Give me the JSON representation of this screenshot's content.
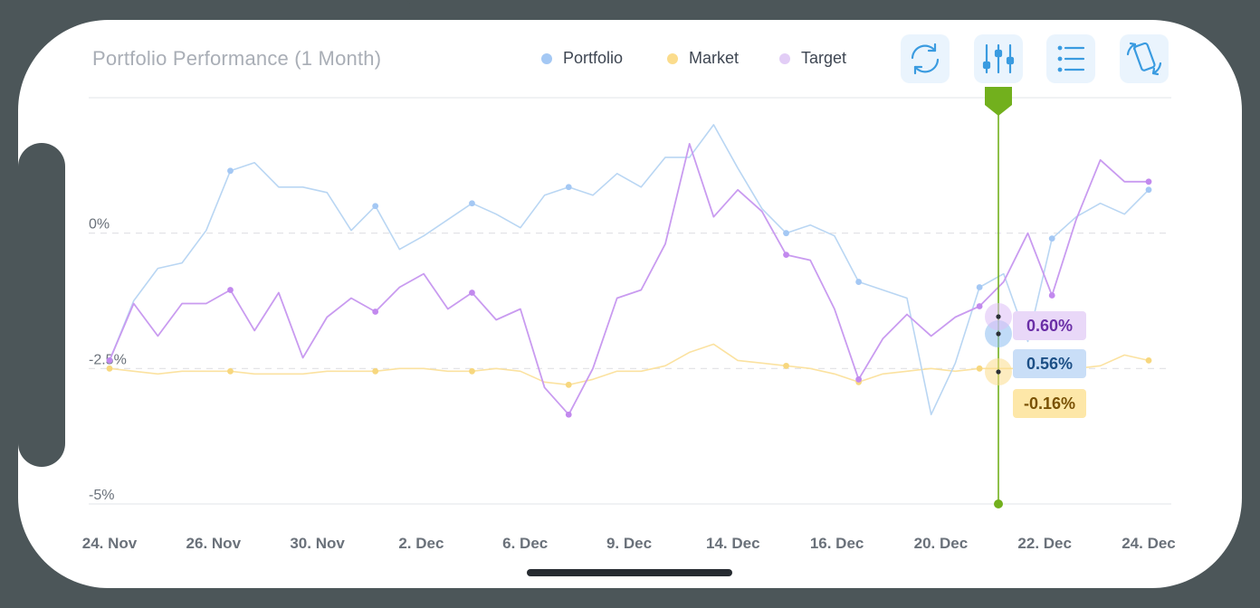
{
  "header": {
    "title": "Portfolio Performance (1 Month)"
  },
  "legend": [
    {
      "label": "Portfolio",
      "color": "#a4c8f4"
    },
    {
      "label": "Market",
      "color": "#fbdc8c"
    },
    {
      "label": "Target",
      "color": "#e2cdf6"
    }
  ],
  "toolbar": [
    {
      "icon": "refresh-icon"
    },
    {
      "icon": "sliders-icon"
    },
    {
      "icon": "list-icon"
    },
    {
      "icon": "rotate-device-icon"
    }
  ],
  "colors": {
    "portfolio_line": "#b9d6f3",
    "portfolio_dot": "#a4c8f4",
    "market_line": "#fbe2a0",
    "market_dot": "#f7d77e",
    "target_line": "#c99bf0",
    "target_dot": "#c289ee",
    "cursor": "#72b01d",
    "frame": "#4c5659"
  },
  "chart_data": {
    "type": "line",
    "title": "Portfolio Performance (1 Month)",
    "xlabel": "",
    "ylabel": "",
    "ylim": [
      -5,
      2.5
    ],
    "y_ticks": [
      {
        "value": 0,
        "label": "0%"
      },
      {
        "value": -2.5,
        "label": "-2.5%"
      },
      {
        "value": -5,
        "label": "-5%"
      }
    ],
    "x_labels": [
      "24. Nov",
      "26. Nov",
      "30. Nov",
      "2. Dec",
      "6. Dec",
      "9. Dec",
      "14. Dec",
      "16. Dec",
      "20. Dec",
      "22. Dec",
      "24. Dec"
    ],
    "series": [
      {
        "name": "Portfolio",
        "values": [
          -2.35,
          -1.25,
          -0.65,
          -0.55,
          0.05,
          1.15,
          1.3,
          0.85,
          0.85,
          0.75,
          0.05,
          0.5,
          -0.3,
          -0.05,
          0.25,
          0.55,
          0.35,
          0.1,
          0.7,
          0.85,
          0.7,
          1.1,
          0.85,
          1.4,
          1.4,
          2.0,
          1.2,
          0.45,
          0.0,
          0.15,
          -0.05,
          -0.9,
          -1.05,
          -1.2,
          -3.35,
          -2.4,
          -1.0,
          -0.75,
          -2.0,
          -0.1,
          0.3,
          0.55,
          0.35,
          0.8
        ]
      },
      {
        "name": "Market",
        "values": [
          -2.5,
          -2.55,
          -2.6,
          -2.55,
          -2.55,
          -2.55,
          -2.6,
          -2.6,
          -2.6,
          -2.55,
          -2.55,
          -2.55,
          -2.5,
          -2.5,
          -2.55,
          -2.55,
          -2.5,
          -2.55,
          -2.75,
          -2.8,
          -2.7,
          -2.55,
          -2.55,
          -2.45,
          -2.2,
          -2.05,
          -2.35,
          -2.4,
          -2.45,
          -2.5,
          -2.6,
          -2.75,
          -2.6,
          -2.55,
          -2.5,
          -2.55,
          -2.5,
          -2.5,
          -2.5,
          -2.5,
          -2.5,
          -2.45,
          -2.25,
          -2.35
        ]
      },
      {
        "name": "Target",
        "values": [
          -2.35,
          -1.3,
          -1.9,
          -1.3,
          -1.3,
          -1.05,
          -1.8,
          -1.1,
          -2.3,
          -1.55,
          -1.2,
          -1.45,
          -1.0,
          -0.75,
          -1.4,
          -1.1,
          -1.6,
          -1.4,
          -2.85,
          -3.35,
          -2.5,
          -1.2,
          -1.05,
          -0.2,
          1.65,
          0.3,
          0.8,
          0.4,
          -0.4,
          -0.5,
          -1.4,
          -2.7,
          -1.95,
          -1.5,
          -1.9,
          -1.55,
          -1.35,
          -0.9,
          0.0,
          -1.15,
          0.25,
          1.35,
          0.95,
          0.95
        ]
      }
    ],
    "tooltips": [
      {
        "series": "Target",
        "value_label": "0.60%"
      },
      {
        "series": "Portfolio",
        "value_label": "0.56%"
      },
      {
        "series": "Market",
        "value_label": "-0.16%"
      }
    ]
  }
}
